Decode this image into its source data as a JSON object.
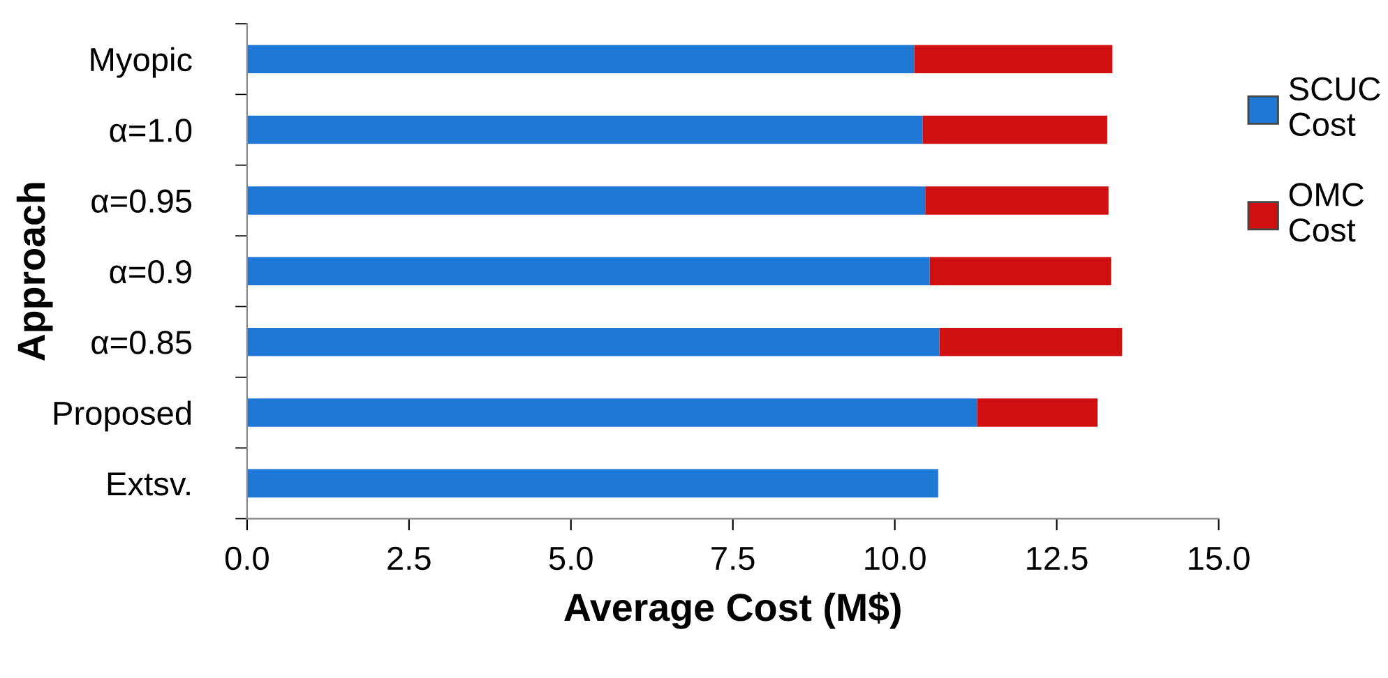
{
  "chart_data": {
    "type": "bar",
    "orientation": "horizontal",
    "stacked": true,
    "xlabel": "Average Cost (M$)",
    "ylabel": "Approach",
    "categories": [
      "Myopic",
      "α=1.0",
      "α=0.95",
      "α=0.9",
      "α=0.85",
      "Proposed",
      "Extsv."
    ],
    "series": [
      {
        "name": "SCUC Cost",
        "color": "#1f78d4",
        "values": [
          10.3,
          10.43,
          10.47,
          10.54,
          10.69,
          11.27,
          10.67
        ]
      },
      {
        "name": "OMC Cost",
        "color": "#d01010",
        "values": [
          3.06,
          2.85,
          2.83,
          2.8,
          2.82,
          1.86,
          null
        ]
      }
    ],
    "xlim": [
      0,
      15
    ],
    "xticks": [
      {
        "value": 0,
        "label": "0.0"
      },
      {
        "value": 2.5,
        "label": "2.5"
      },
      {
        "value": 5,
        "label": "5.0"
      },
      {
        "value": 7.5,
        "label": "7.5"
      },
      {
        "value": 10,
        "label": "10.0"
      },
      {
        "value": 12.5,
        "label": "12.5"
      },
      {
        "value": 15,
        "label": "15.0"
      }
    ],
    "grid": false,
    "legend": "right"
  }
}
